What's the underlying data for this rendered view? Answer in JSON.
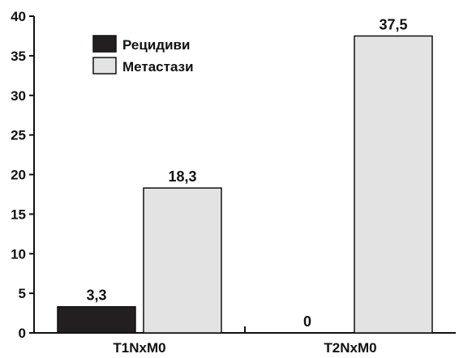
{
  "chart_data": {
    "type": "bar",
    "categories": [
      "T1NxM0",
      "T2NxM0"
    ],
    "series": [
      {
        "name": "Рецидиви",
        "values": [
          3.3,
          0
        ],
        "labels": [
          "3,3",
          "0"
        ],
        "color": "#231f20"
      },
      {
        "name": "Метастази",
        "values": [
          18.3,
          37.5
        ],
        "labels": [
          "18,3",
          "37,5"
        ],
        "color": "#e3e3e3"
      }
    ],
    "ylim": [
      0,
      40
    ],
    "yticks": [
      0,
      5,
      10,
      15,
      20,
      25,
      30,
      35,
      40
    ],
    "ytick_labels": [
      "0",
      "5",
      "10",
      "15",
      "20",
      "25",
      "30",
      "35",
      "40"
    ],
    "title": "",
    "xlabel": "",
    "ylabel": "",
    "grid": false,
    "legend_position": "top-left"
  }
}
